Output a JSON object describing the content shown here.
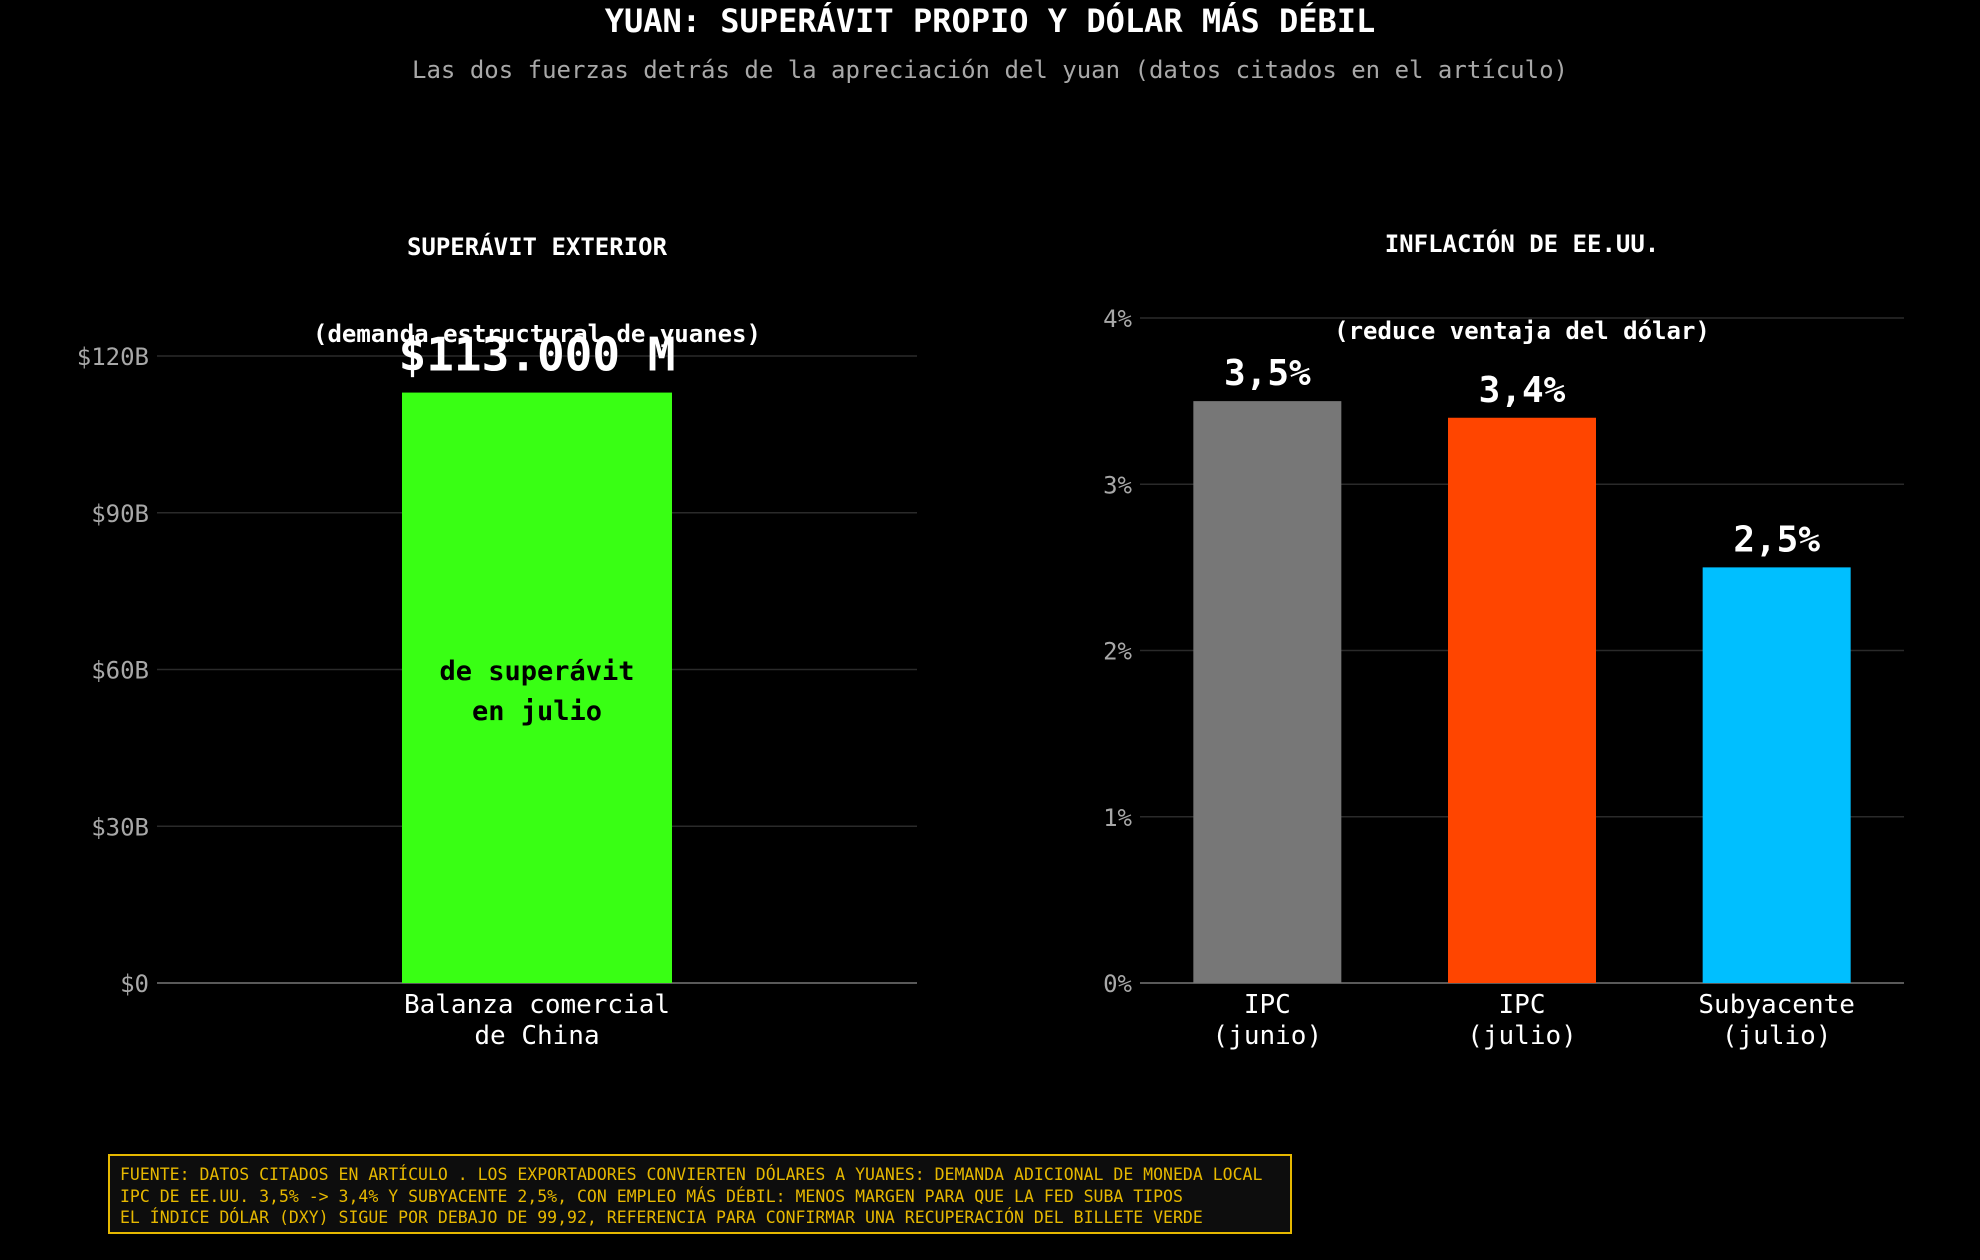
{
  "title": "YUAN: SUPERÁVIT PROPIO Y DÓLAR MÁS DÉBIL",
  "subtitle": "Las dos fuerzas detrás de la apreciación del yuan (datos citados en el artículo)",
  "chart_data": [
    {
      "type": "bar",
      "title_lines": [
        "SUPERÁVIT EXTERIOR",
        "(demanda estructural de yuanes)"
      ],
      "categories": [
        [
          "Balanza comercial",
          "de China"
        ]
      ],
      "values": [
        113
      ],
      "value_unit": "B USD",
      "data_labels": [
        "$113.000 M"
      ],
      "inner_label_lines": [
        "de superávit",
        "en julio"
      ],
      "ylim": [
        0,
        120
      ],
      "yticks": [
        0,
        30,
        60,
        90,
        120
      ],
      "ytick_labels": [
        "$0",
        "$30B",
        "$60B",
        "$90B",
        "$120B"
      ],
      "colors": [
        "#39ff14"
      ],
      "grid": true
    },
    {
      "type": "bar",
      "title_lines": [
        "INFLACIÓN DE EE.UU.",
        "(reduce ventaja del dólar)"
      ],
      "categories": [
        [
          "IPC",
          "(junio)"
        ],
        [
          "IPC",
          "(julio)"
        ],
        [
          "Subyacente",
          "(julio)"
        ]
      ],
      "values": [
        3.5,
        3.4,
        2.5
      ],
      "value_unit": "%",
      "data_labels": [
        "3,5%",
        "3,4%",
        "2,5%"
      ],
      "ylim": [
        0,
        4
      ],
      "yticks": [
        0,
        1,
        2,
        3,
        4
      ],
      "ytick_labels": [
        "0%",
        "1%",
        "2%",
        "3%",
        "4%"
      ],
      "colors": [
        "#777777",
        "#ff4500",
        "#00bfff"
      ],
      "grid": true
    }
  ],
  "footer": {
    "lines": [
      "FUENTE: DATOS CITADOS EN ARTÍCULO . LOS EXPORTADORES CONVIERTEN DÓLARES A YUANES: DEMANDA ADICIONAL DE MONEDA LOCAL",
      "IPC DE EE.UU. 3,5% -> 3,4% Y SUBYACENTE 2,5%, CON EMPLEO MÁS DÉBIL: MENOS MARGEN PARA QUE LA FED SUBA TIPOS",
      "EL ÍNDICE DÓLAR (DXY) SIGUE POR DEBAJO DE 99,92, REFERENCIA PARA CONFIRMAR UNA RECUPERACIÓN DEL BILLETE VERDE"
    ]
  }
}
